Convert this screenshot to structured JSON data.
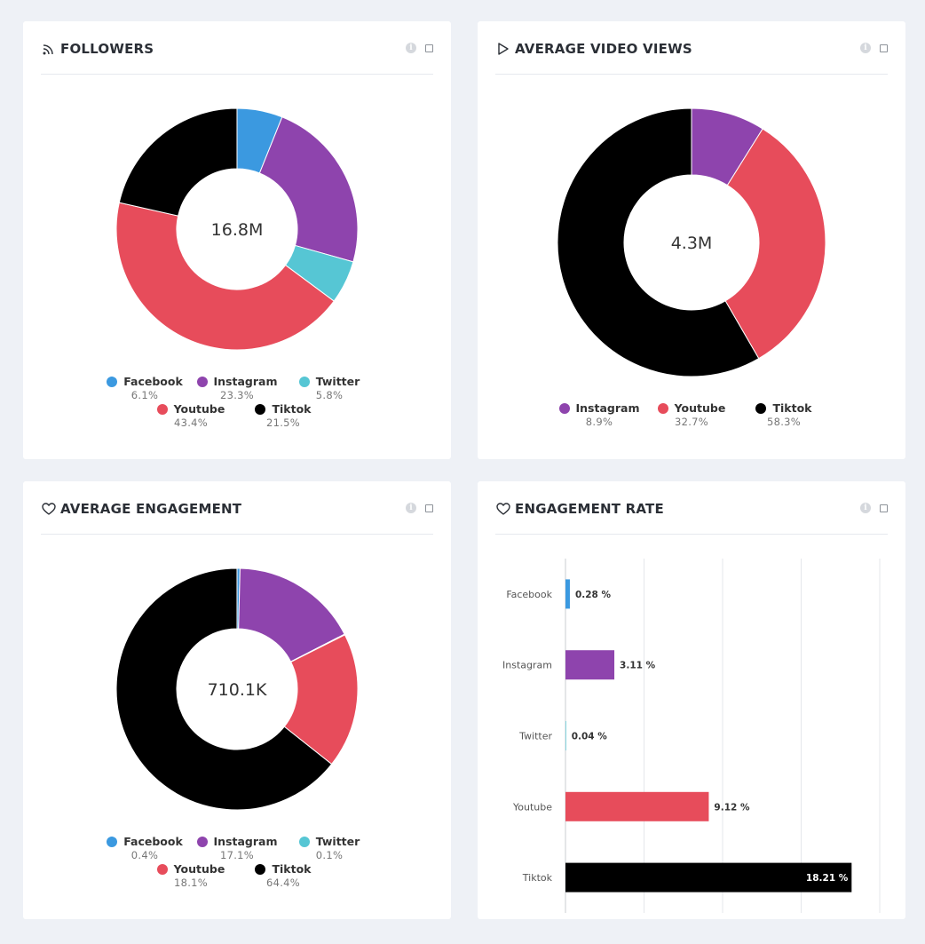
{
  "cards": {
    "followers": {
      "title": "FOLLOWERS",
      "icon": "rss-icon",
      "total": "16.8M"
    },
    "views": {
      "title": "AVERAGE VIDEO VIEWS",
      "icon": "play-icon",
      "total": "4.3M"
    },
    "engagement": {
      "title": "AVERAGE ENGAGEMENT",
      "icon": "heart-icon",
      "total": "710.1K"
    },
    "rate": {
      "title": "ENGAGEMENT RATE",
      "icon": "heart-icon"
    }
  },
  "colors": {
    "Facebook": "#3b99e0",
    "Instagram": "#8e44ad",
    "Twitter": "#56c6d4",
    "Youtube": "#e74c5b",
    "Tiktok": "#000000"
  },
  "chart_data": [
    {
      "id": "followers",
      "type": "pie",
      "title": "FOLLOWERS",
      "center_label": "16.8M",
      "legend_rows": [
        [
          "Facebook",
          "Instagram",
          "Twitter"
        ],
        [
          "Youtube",
          "Tiktok"
        ]
      ],
      "slices": [
        {
          "name": "Facebook",
          "value": 6.1,
          "label": "6.1%"
        },
        {
          "name": "Instagram",
          "value": 23.3,
          "label": "23.3%"
        },
        {
          "name": "Twitter",
          "value": 5.8,
          "label": "5.8%"
        },
        {
          "name": "Youtube",
          "value": 43.4,
          "label": "43.4%"
        },
        {
          "name": "Tiktok",
          "value": 21.5,
          "label": "21.5%"
        }
      ]
    },
    {
      "id": "views",
      "type": "pie",
      "title": "AVERAGE VIDEO VIEWS",
      "center_label": "4.3M",
      "legend_rows": [
        [
          "Instagram",
          "Youtube",
          "Tiktok"
        ]
      ],
      "slices": [
        {
          "name": "Instagram",
          "value": 8.9,
          "label": "8.9%"
        },
        {
          "name": "Youtube",
          "value": 32.7,
          "label": "32.7%"
        },
        {
          "name": "Tiktok",
          "value": 58.3,
          "label": "58.3%"
        }
      ]
    },
    {
      "id": "engagement",
      "type": "pie",
      "title": "AVERAGE ENGAGEMENT",
      "center_label": "710.1K",
      "legend_rows": [
        [
          "Facebook",
          "Instagram",
          "Twitter"
        ],
        [
          "Youtube",
          "Tiktok"
        ]
      ],
      "slices": [
        {
          "name": "Facebook",
          "value": 0.4,
          "label": "0.4%"
        },
        {
          "name": "Instagram",
          "value": 17.1,
          "label": "17.1%"
        },
        {
          "name": "Twitter",
          "value": 0.1,
          "label": "0.1%"
        },
        {
          "name": "Youtube",
          "value": 18.1,
          "label": "18.1%"
        },
        {
          "name": "Tiktok",
          "value": 64.4,
          "label": "64.4%"
        }
      ]
    },
    {
      "id": "rate",
      "type": "bar",
      "orientation": "horizontal",
      "title": "ENGAGEMENT RATE",
      "categories": [
        "Facebook",
        "Instagram",
        "Twitter",
        "Youtube",
        "Tiktok"
      ],
      "values": [
        0.28,
        3.11,
        0.04,
        9.12,
        18.21
      ],
      "value_labels": [
        "0.28 %",
        "3.11 %",
        "0.04 %",
        "9.12 %",
        "18.21 %"
      ],
      "xlim": [
        0,
        20
      ],
      "xticks": [
        0,
        5,
        10,
        15,
        20
      ],
      "grid": true
    }
  ]
}
